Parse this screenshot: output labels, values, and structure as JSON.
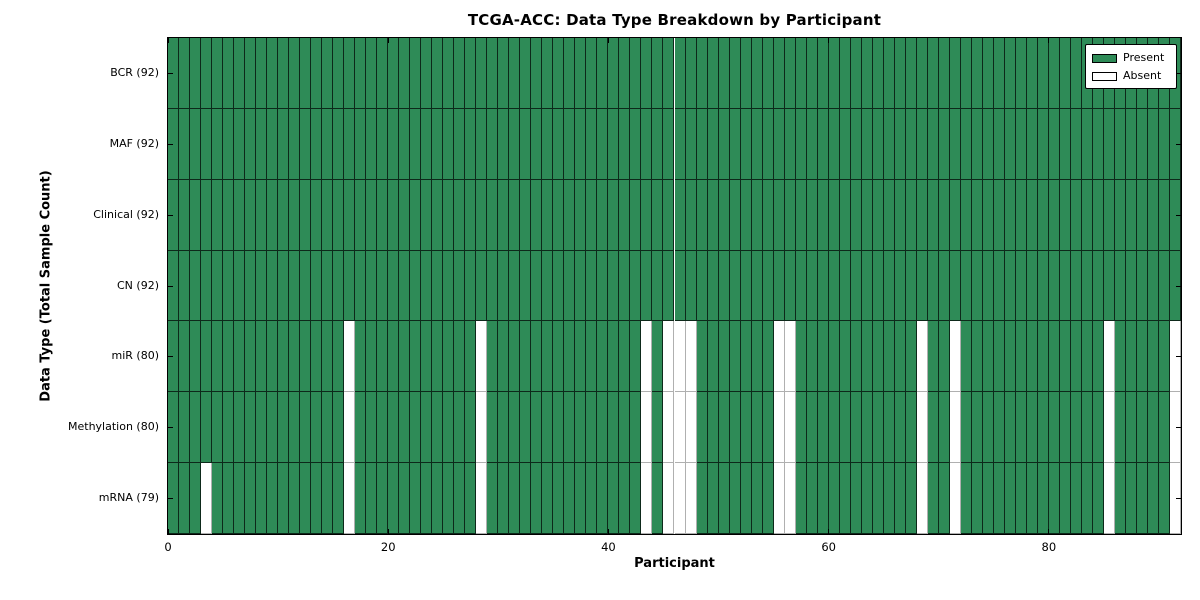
{
  "chart_data": {
    "type": "heatmap",
    "title": "TCGA-ACC: Data Type Breakdown by Participant",
    "xlabel": "Participant",
    "ylabel": "Data Type (Total Sample Count)",
    "n_participants": 92,
    "x_range": [
      0,
      92
    ],
    "x_ticks": [
      0,
      20,
      40,
      60,
      80
    ],
    "grid": false,
    "colors": {
      "present": "#2e8b57",
      "absent": "#ffffff",
      "cell_edge": "rgba(0,0,0,0.7)",
      "absent_edge": "#b0b0b0"
    },
    "legend": {
      "position": "upper right",
      "items": [
        {
          "label": "Present",
          "color": "#2e8b57"
        },
        {
          "label": "Absent",
          "color": "#ffffff"
        }
      ]
    },
    "rows": [
      {
        "label": "BCR (92)",
        "name": "BCR",
        "present_count": 92,
        "absent": []
      },
      {
        "label": "MAF (92)",
        "name": "MAF",
        "present_count": 92,
        "absent": []
      },
      {
        "label": "Clinical (92)",
        "name": "Clinical",
        "present_count": 92,
        "absent": []
      },
      {
        "label": "CN (92)",
        "name": "CN",
        "present_count": 92,
        "absent": []
      },
      {
        "label": "miR (80)",
        "name": "miR",
        "present_count": 80,
        "absent": [
          16,
          28,
          43,
          45,
          46,
          47,
          55,
          56,
          68,
          71,
          85,
          91
        ]
      },
      {
        "label": "Methylation (80)",
        "name": "Methylation",
        "present_count": 80,
        "absent": [
          16,
          28,
          43,
          45,
          46,
          47,
          55,
          56,
          68,
          71,
          85,
          91
        ]
      },
      {
        "label": "mRNA (79)",
        "name": "mRNA",
        "present_count": 79,
        "absent": [
          3,
          16,
          28,
          43,
          45,
          46,
          47,
          55,
          56,
          68,
          71,
          85,
          91
        ]
      }
    ]
  }
}
